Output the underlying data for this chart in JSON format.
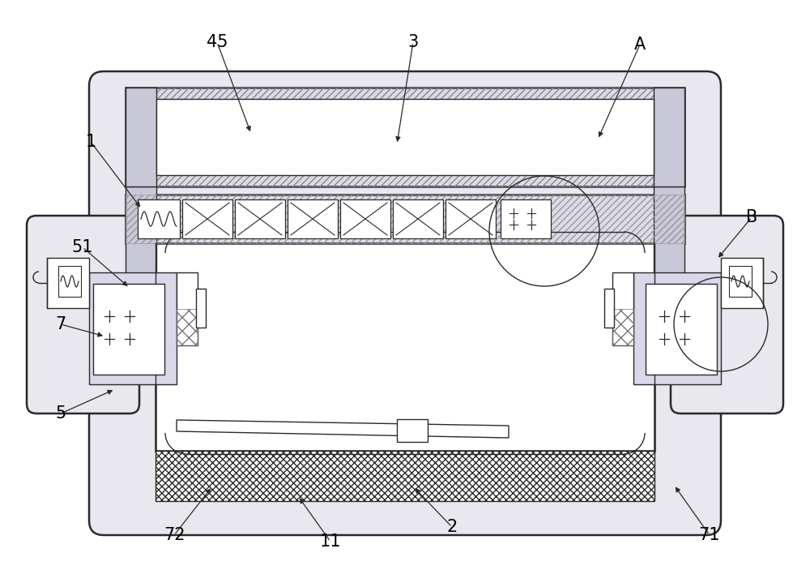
{
  "bg_color": "#ffffff",
  "lc": "#2a2a2a",
  "stipple_color": "#c8c8d8",
  "fig_w": 10.0,
  "fig_h": 7.24,
  "dpi": 100
}
